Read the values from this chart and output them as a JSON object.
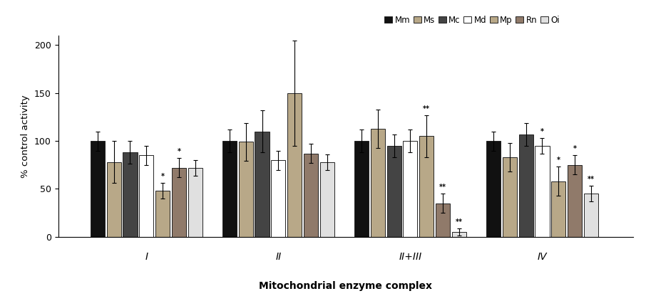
{
  "groups": [
    "I",
    "II",
    "II+III",
    "IV"
  ],
  "species": [
    "Mm",
    "Ms",
    "Mc",
    "Md",
    "Mp",
    "Rn",
    "Oi"
  ],
  "colors": [
    "#1a1a1a",
    "#c8b89a",
    "#3a3a3a",
    "#ffffff",
    "#c8b89a",
    "#9a8c7e",
    "#e8e8e8"
  ],
  "bar_colors": [
    [
      "#111111",
      "#b8a888",
      "#444444",
      "#ffffff",
      "#b8a888",
      "#907a6a",
      "#e0e0e0"
    ],
    [
      "#111111",
      "#b8a888",
      "#444444",
      "#ffffff",
      "#b8a888",
      "#907a6a",
      "#e0e0e0"
    ],
    [
      "#111111",
      "#b8a888",
      "#444444",
      "#ffffff",
      "#b8a888",
      "#907a6a",
      "#e0e0e0"
    ],
    [
      "#111111",
      "#b8a888",
      "#444444",
      "#ffffff",
      "#b8a888",
      "#907a6a",
      "#e0e0e0"
    ]
  ],
  "values": [
    [
      100,
      78,
      88,
      85,
      48,
      72,
      72
    ],
    [
      100,
      99,
      110,
      80,
      150,
      87,
      78
    ],
    [
      100,
      113,
      95,
      100,
      105,
      35,
      5
    ],
    [
      100,
      83,
      107,
      95,
      58,
      75,
      45
    ]
  ],
  "errors": [
    [
      10,
      22,
      12,
      10,
      8,
      10,
      8
    ],
    [
      12,
      20,
      22,
      10,
      55,
      10,
      8
    ],
    [
      12,
      20,
      12,
      12,
      22,
      10,
      4
    ],
    [
      10,
      15,
      12,
      8,
      15,
      10,
      8
    ]
  ],
  "sig_markers": [
    [
      "",
      "",
      "",
      "",
      "*",
      "*",
      ""
    ],
    [
      "",
      "",
      "",
      "",
      "",
      "",
      ""
    ],
    [
      "",
      "",
      "",
      "",
      "**",
      "**",
      "**"
    ],
    [
      "",
      "",
      "",
      "*",
      "*",
      "*",
      "**"
    ]
  ],
  "ylabel": "% control activity",
  "xlabel": "Mitochondrial enzyme complex",
  "ylim": [
    0,
    210
  ],
  "yticks": [
    0,
    50,
    100,
    150,
    200
  ],
  "legend_labels": [
    "Mm",
    "Ms",
    "Mc",
    "Md",
    "Mp",
    "Rn",
    "Oi"
  ]
}
